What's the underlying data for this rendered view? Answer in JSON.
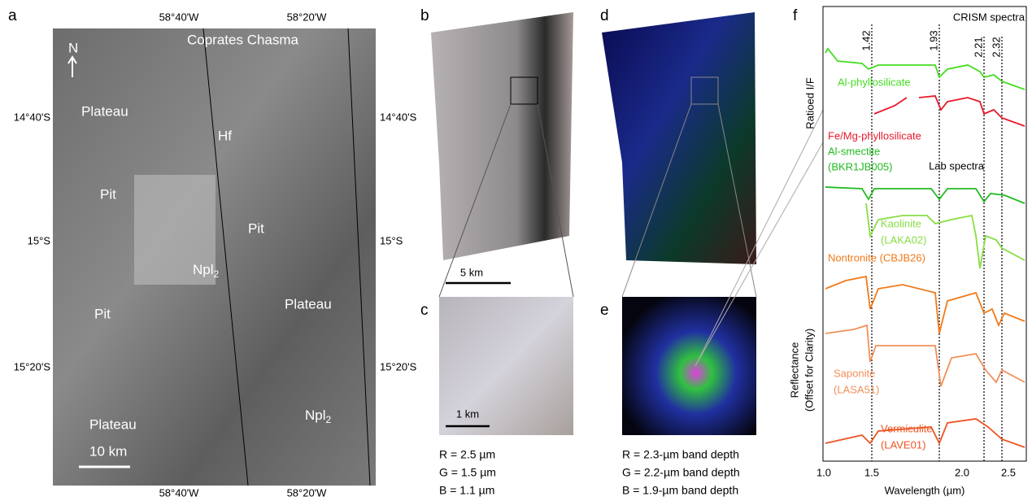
{
  "panels": {
    "a": {
      "label": "a",
      "top_ticks": [
        "58°40'W",
        "58°20'W"
      ],
      "bottom_ticks": [
        "58°40'W",
        "58°20'W"
      ],
      "left_ticks": [
        "14°40'S",
        "15°S",
        "15°20'S"
      ],
      "right_ticks": [
        "14°40'S",
        "15°S",
        "15°20'S"
      ],
      "north": "N",
      "scale": "10 km",
      "annotations": {
        "chasma": "Coprates Chasma",
        "plateau1": "Plateau",
        "hf": "Hf",
        "pit1": "Pit",
        "pit2": "Pit",
        "npl_a": {
          "text": "Npl",
          "sub": "2"
        },
        "pit3": "Pit",
        "plateau2": "Plateau",
        "plateau3": "Plateau",
        "npl_b": {
          "text": "Npl",
          "sub": "2"
        }
      }
    },
    "b": {
      "label": "b",
      "scale": "5 km"
    },
    "c": {
      "label": "c",
      "scale": "1 km",
      "caption": [
        "R = 2.5 µm",
        "G = 1.5 µm",
        "B = 1.1 µm"
      ]
    },
    "d": {
      "label": "d"
    },
    "e": {
      "label": "e",
      "caption": [
        "R = 2.3-µm band depth",
        "G = 2.2-µm band depth",
        "B = 1.9-µm band depth"
      ]
    },
    "f": {
      "label": "f",
      "title": "CRISM spectra",
      "lab": "Lab spectra",
      "band_labels": [
        "1.42",
        "1.93",
        "2.21",
        "2.32"
      ],
      "ylabel_top": "Ratioed I/F",
      "ylabel_bottom": [
        "Reflectance",
        "(Offset for Clarity)"
      ],
      "xlabel": "Wavelength (µm)",
      "xticks": [
        "1.0",
        "1.5",
        "2.0",
        "2.5"
      ],
      "spectra": {
        "al_phyl": "Al-phyllosilicate",
        "femg": "Fe/Mg-phyllosilicate",
        "al_smectite": [
          "Al-smectite",
          "(BKR1JB005)"
        ],
        "kaolinite": [
          "Kaolinite",
          "(LAKA02)"
        ],
        "nontronite": "Nontronite (CBJB26)",
        "saponite": [
          "Saponite",
          "(LASA51)"
        ],
        "vermiculite": [
          "Vermiculite",
          "(LAVE01)"
        ]
      }
    }
  }
}
